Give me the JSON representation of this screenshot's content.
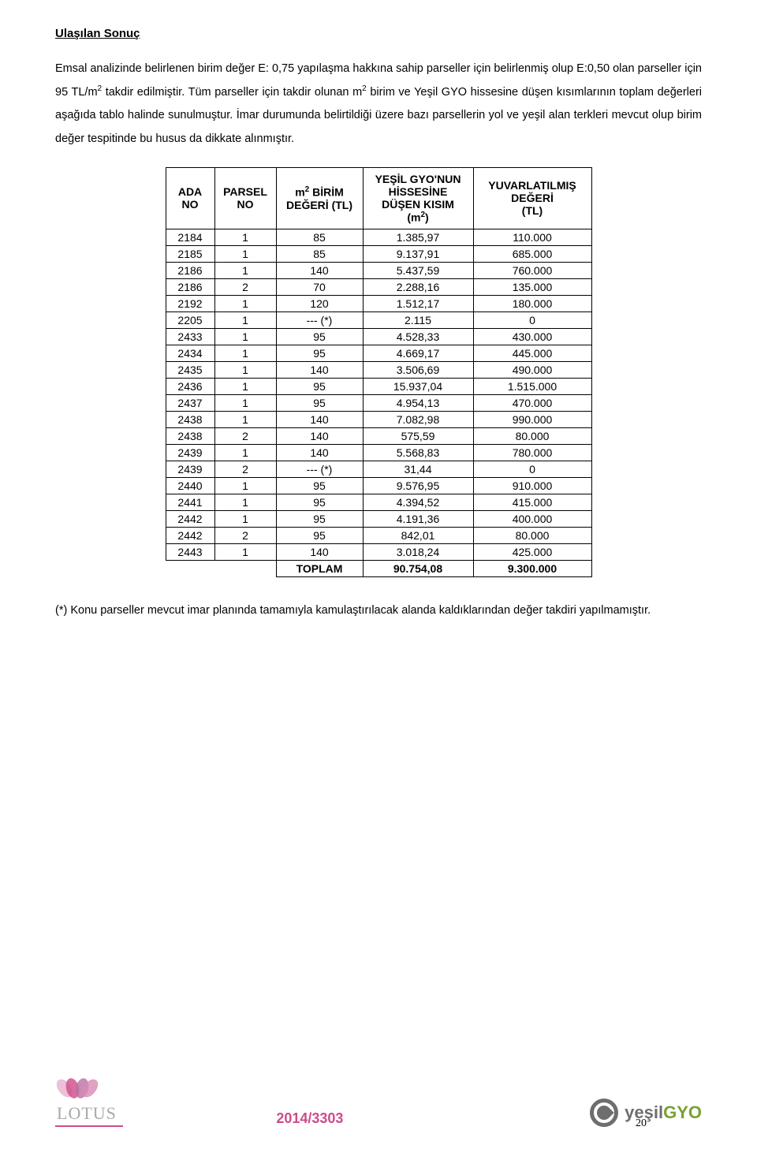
{
  "heading": "Ulaşılan Sonuç",
  "para1_html": "Emsal analizinde belirlenen birim değer E: 0,75 yapılaşma hakkına sahip parseller için belirlenmiş olup E:0,50 olan parseller için 95 TL/m<span class=\"sup\">2</span> takdir edilmiştir. Tüm parseller için takdir olunan m<span class=\"sup\">2</span> birim ve Yeşil GYO hissesine düşen kısımlarının toplam değerleri aşağıda tablo halinde sunulmuştur. İmar durumunda belirtildiği üzere bazı parsellerin yol ve yeşil alan terkleri mevcut olup birim değer tespitinde bu husus da dikkate alınmıştır.",
  "th": {
    "ada": "ADA\nNO",
    "parsel": "PARSEL\nNO",
    "birim_html": "m<span class=\"sup\">2</span> BİRİM\nDEĞERİ (TL)",
    "hisse_html": "YEŞİL GYO'NUN\nHİSSESİNE\nDÜŞEN KISIM\n(m<span class=\"sup\">2</span>)",
    "deger": "YUVARLATILMIŞ\nDEĞERİ\n(TL)"
  },
  "rows": [
    [
      "2184",
      "1",
      "85",
      "1.385,97",
      "110.000"
    ],
    [
      "2185",
      "1",
      "85",
      "9.137,91",
      "685.000"
    ],
    [
      "2186",
      "1",
      "140",
      "5.437,59",
      "760.000"
    ],
    [
      "2186",
      "2",
      "70",
      "2.288,16",
      "135.000"
    ],
    [
      "2192",
      "1",
      "120",
      "1.512,17",
      "180.000"
    ],
    [
      "2205",
      "1",
      "--- (*)",
      "2.115",
      "0"
    ],
    [
      "2433",
      "1",
      "95",
      "4.528,33",
      "430.000"
    ],
    [
      "2434",
      "1",
      "95",
      "4.669,17",
      "445.000"
    ],
    [
      "2435",
      "1",
      "140",
      "3.506,69",
      "490.000"
    ],
    [
      "2436",
      "1",
      "95",
      "15.937,04",
      "1.515.000"
    ],
    [
      "2437",
      "1",
      "95",
      "4.954,13",
      "470.000"
    ],
    [
      "2438",
      "1",
      "140",
      "7.082,98",
      "990.000"
    ],
    [
      "2438",
      "2",
      "140",
      "575,59",
      "80.000"
    ],
    [
      "2439",
      "1",
      "140",
      "5.568,83",
      "780.000"
    ],
    [
      "2439",
      "2",
      "--- (*)",
      "31,44",
      "0"
    ],
    [
      "2440",
      "1",
      "95",
      "9.576,95",
      "910.000"
    ],
    [
      "2441",
      "1",
      "95",
      "4.394,52",
      "415.000"
    ],
    [
      "2442",
      "1",
      "95",
      "4.191,36",
      "400.000"
    ],
    [
      "2442",
      "2",
      "95",
      "842,01",
      "80.000"
    ],
    [
      "2443",
      "1",
      "140",
      "3.018,24",
      "425.000"
    ]
  ],
  "total": {
    "label": "TOPLAM",
    "hisse": "90.754,08",
    "deger": "9.300.000"
  },
  "footnote": "(*) Konu parseller mevcut imar planında tamamıyla kamulaştırılacak alanda kaldıklarından değer takdiri yapılmamıştır.",
  "footer": {
    "lotus": "LOTUS",
    "ref": "2014/3303",
    "yesil_y": "yeşil",
    "yesil_g": "GYO",
    "pagenum": "20"
  },
  "colors": {
    "petal1": "#b970a1",
    "petal2": "#cf4b8a",
    "petal3": "#d889b4",
    "petal4": "#e7b0cd"
  }
}
